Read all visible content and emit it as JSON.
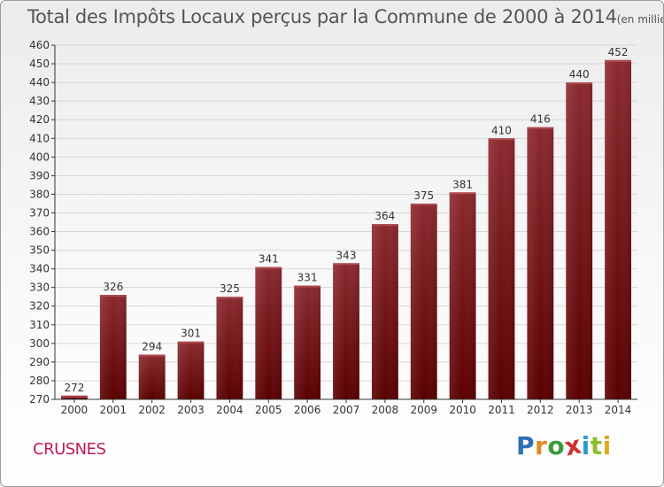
{
  "header": {
    "title": "Total des Impôts Locaux perçus par la Commune de 2000 à 2014",
    "unit": "(en milliers d'€)"
  },
  "footer": {
    "commune": "CRUSNES",
    "logo_letters": [
      {
        "char": "P",
        "color": "#2e6fb7"
      },
      {
        "char": "r",
        "color": "#e08a1e"
      },
      {
        "char": "o",
        "color": "#3a9a3a"
      },
      {
        "char": "x",
        "color": "#d12f2f"
      },
      {
        "char": "i",
        "color": "#2e9bd0"
      },
      {
        "char": "t",
        "color": "#8cbf2e"
      },
      {
        "char": "i",
        "color": "#e0a81e"
      }
    ]
  },
  "colors": {
    "bar_top": "#8b2a2f",
    "bar_bottom": "#5a0000",
    "axis": "#333333",
    "grid": "#d6d6d6"
  },
  "chart_data": {
    "type": "bar",
    "title": "Total des Impôts Locaux perçus par la Commune de 2000 à 2014",
    "categories": [
      "2000",
      "2001",
      "2002",
      "2003",
      "2004",
      "2005",
      "2006",
      "2007",
      "2008",
      "2009",
      "2010",
      "2011",
      "2012",
      "2013",
      "2014"
    ],
    "values": [
      272,
      326,
      294,
      301,
      325,
      341,
      331,
      343,
      364,
      375,
      381,
      410,
      416,
      440,
      452
    ],
    "ylim": [
      270,
      460
    ],
    "yticks": [
      270,
      280,
      290,
      300,
      310,
      320,
      330,
      340,
      350,
      360,
      370,
      380,
      390,
      400,
      410,
      420,
      430,
      440,
      450,
      460
    ],
    "grid": true,
    "data_labels": true
  }
}
